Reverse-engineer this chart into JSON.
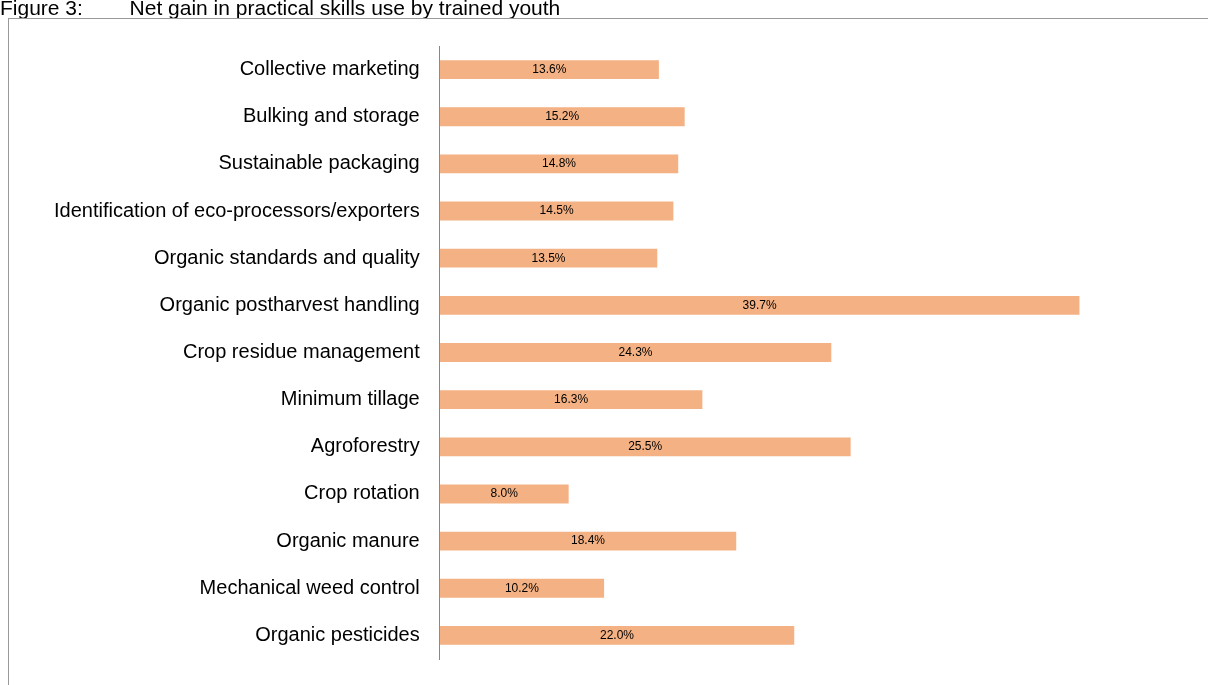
{
  "chart_data": {
    "type": "bar",
    "orientation": "horizontal",
    "title": "Figure 3:        Net gain in practical skills use by trained youth",
    "categories": [
      "Collective marketing",
      "Bulking and storage",
      "Sustainable packaging",
      "Identification of eco-processors/exporters",
      "Organic standards and quality",
      "Organic postharvest handling",
      "Crop residue management",
      "Minimum tillage",
      "Agroforestry",
      "Crop rotation",
      "Organic manure",
      "Mechanical weed control",
      "Organic pesticides"
    ],
    "values": [
      13.6,
      15.2,
      14.8,
      14.5,
      13.5,
      39.7,
      24.3,
      16.3,
      25.5,
      8.0,
      18.4,
      10.2,
      22.0
    ],
    "value_labels": [
      "13.6%",
      "15.2%",
      "14.8%",
      "14.5%",
      "13.5%",
      "39.7%",
      "24.3%",
      "16.3%",
      "25.5%",
      "8.0%",
      "18.4%",
      "10.2%",
      "22.0%"
    ],
    "color": "#f4b183",
    "tick_labels": "y",
    "grid": false,
    "legend": false
  }
}
